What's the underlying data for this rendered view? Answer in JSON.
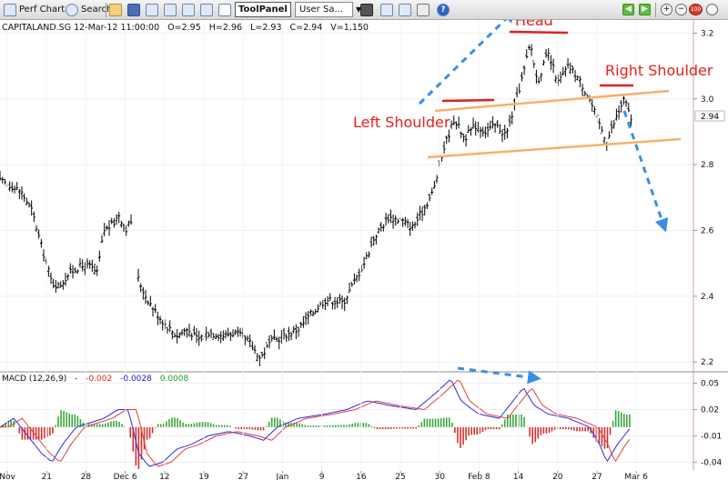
{
  "toolbar": {
    "perf_chart_label": "Perf Chart",
    "search_label": "Search",
    "tool_panel_label": "ToolPanel",
    "user_select_value": "User Sa...",
    "zoom_in_glyph": "+",
    "zoom_out_glyph": "−",
    "zoom_reset_label": "100",
    "help_glyph": "?",
    "prev_glyph": "◀",
    "next_glyph": "▶"
  },
  "chart_data": [
    {
      "type": "bar",
      "subtype": "ohlc",
      "symbol": "CAPITALAND.SG",
      "header": "CAPITALAND.SG 12-Mar-12 11:00:00",
      "last_bar": {
        "open_label": "O=2.95",
        "high_label": "H=2.96",
        "low_label": "L=2.93",
        "close_label": "C=2.94",
        "volume_label": "V=1,150"
      },
      "last_price_label": "2.94",
      "last_price": 2.94,
      "y_ticks": [
        2.2,
        2.4,
        2.6,
        2.8,
        3.0,
        3.2
      ],
      "y_tick_labels": [
        "2.2",
        "2.4",
        "2.6",
        "2.8",
        "3.0",
        "3.2"
      ],
      "ylim": [
        2.17,
        3.24
      ],
      "x_tick_labels": [
        "Nov",
        "21",
        "28",
        "Dec 6",
        "12",
        "19",
        "27",
        "Jan",
        "9",
        "16",
        "25",
        "30",
        "Feb 8",
        "14",
        "20",
        "27",
        "Mar 6"
      ],
      "price_path": [
        [
          0,
          2.75
        ],
        [
          0.012,
          2.74
        ],
        [
          0.03,
          2.72
        ],
        [
          0.046,
          2.66
        ],
        [
          0.06,
          2.55
        ],
        [
          0.075,
          2.44
        ],
        [
          0.085,
          2.43
        ],
        [
          0.1,
          2.47
        ],
        [
          0.115,
          2.49
        ],
        [
          0.13,
          2.49
        ],
        [
          0.14,
          2.47
        ],
        [
          0.15,
          2.6
        ],
        [
          0.163,
          2.62
        ],
        [
          0.172,
          2.65
        ],
        [
          0.18,
          2.6
        ],
        [
          0.19,
          2.63
        ],
        [
          0.198,
          2.46
        ],
        [
          0.21,
          2.4
        ],
        [
          0.225,
          2.35
        ],
        [
          0.24,
          2.31
        ],
        [
          0.255,
          2.28
        ],
        [
          0.27,
          2.3
        ],
        [
          0.285,
          2.27
        ],
        [
          0.3,
          2.29
        ],
        [
          0.32,
          2.28
        ],
        [
          0.34,
          2.29
        ],
        [
          0.36,
          2.26
        ],
        [
          0.375,
          2.21
        ],
        [
          0.39,
          2.26
        ],
        [
          0.41,
          2.28
        ],
        [
          0.43,
          2.3
        ],
        [
          0.45,
          2.35
        ],
        [
          0.47,
          2.39
        ],
        [
          0.495,
          2.38
        ],
        [
          0.51,
          2.44
        ],
        [
          0.525,
          2.5
        ],
        [
          0.54,
          2.58
        ],
        [
          0.56,
          2.64
        ],
        [
          0.58,
          2.63
        ],
        [
          0.595,
          2.61
        ],
        [
          0.61,
          2.66
        ],
        [
          0.625,
          2.72
        ],
        [
          0.64,
          2.85
        ],
        [
          0.655,
          2.94
        ],
        [
          0.67,
          2.88
        ],
        [
          0.685,
          2.92
        ],
        [
          0.7,
          2.9
        ],
        [
          0.715,
          2.92
        ],
        [
          0.73,
          2.89
        ],
        [
          0.745,
          3.0
        ],
        [
          0.755,
          3.08
        ],
        [
          0.765,
          3.17
        ],
        [
          0.775,
          3.05
        ],
        [
          0.79,
          3.14
        ],
        [
          0.805,
          3.05
        ],
        [
          0.82,
          3.1
        ],
        [
          0.835,
          3.06
        ],
        [
          0.85,
          3.0
        ],
        [
          0.865,
          2.92
        ],
        [
          0.875,
          2.87
        ],
        [
          0.89,
          2.95
        ],
        [
          0.9,
          3.0
        ],
        [
          0.91,
          2.94
        ]
      ],
      "annotations": [
        {
          "text": "Head"
        },
        {
          "text": "Left Shoulder"
        },
        {
          "text": "Right Shoulder"
        }
      ],
      "colors": {
        "annotation_text": "#e8201c",
        "annotation_line": "#e02020",
        "neckline": "#f5b16a",
        "arrow": "#3a8ee0",
        "bars": "#000000",
        "grid": "#e8e8e8"
      }
    },
    {
      "type": "line",
      "indicator": "MACD",
      "label": "MACD (12,26,9)",
      "dash": "-",
      "values_labels": [
        "-0.002",
        "-0.0028",
        "0.0008"
      ],
      "values_colors": [
        "#e02020",
        "#2020c0",
        "#20a020"
      ],
      "y_ticks": [
        -0.04,
        -0.02,
        0.0,
        0.02,
        0.05
      ],
      "y_tick_labels": [
        "-0.04",
        "-0.01",
        "0.02",
        "0.05"
      ],
      "y_tick_label_values": [
        -0.04,
        -0.01,
        0.02,
        0.05
      ],
      "ylim": [
        -0.05,
        0.06
      ],
      "macd_path": [
        [
          0,
          0.0
        ],
        [
          0.02,
          0.01
        ],
        [
          0.04,
          -0.01
        ],
        [
          0.06,
          -0.03
        ],
        [
          0.075,
          -0.04
        ],
        [
          0.09,
          -0.02
        ],
        [
          0.11,
          0.0
        ],
        [
          0.13,
          0.005
        ],
        [
          0.15,
          0.01
        ],
        [
          0.17,
          0.02
        ],
        [
          0.185,
          0.02
        ],
        [
          0.2,
          -0.03
        ],
        [
          0.215,
          -0.045
        ],
        [
          0.235,
          -0.04
        ],
        [
          0.255,
          -0.025
        ],
        [
          0.275,
          -0.02
        ],
        [
          0.3,
          -0.01
        ],
        [
          0.33,
          -0.005
        ],
        [
          0.36,
          -0.01
        ],
        [
          0.38,
          -0.015
        ],
        [
          0.4,
          0.0
        ],
        [
          0.43,
          0.01
        ],
        [
          0.47,
          0.015
        ],
        [
          0.5,
          0.02
        ],
        [
          0.53,
          0.03
        ],
        [
          0.56,
          0.025
        ],
        [
          0.6,
          0.02
        ],
        [
          0.63,
          0.04
        ],
        [
          0.65,
          0.055
        ],
        [
          0.665,
          0.03
        ],
        [
          0.69,
          0.015
        ],
        [
          0.72,
          0.01
        ],
        [
          0.74,
          0.03
        ],
        [
          0.755,
          0.045
        ],
        [
          0.77,
          0.025
        ],
        [
          0.79,
          0.015
        ],
        [
          0.82,
          0.01
        ],
        [
          0.85,
          0.0
        ],
        [
          0.865,
          -0.02
        ],
        [
          0.875,
          -0.04
        ],
        [
          0.89,
          -0.02
        ],
        [
          0.91,
          0.0
        ]
      ],
      "x_tick_labels": [
        "Nov",
        "21",
        "28",
        "Dec 6",
        "12",
        "19",
        "27",
        "Jan",
        "9",
        "16",
        "25",
        "30",
        "Feb 8",
        "14",
        "20",
        "27",
        "Mar 6"
      ]
    }
  ]
}
